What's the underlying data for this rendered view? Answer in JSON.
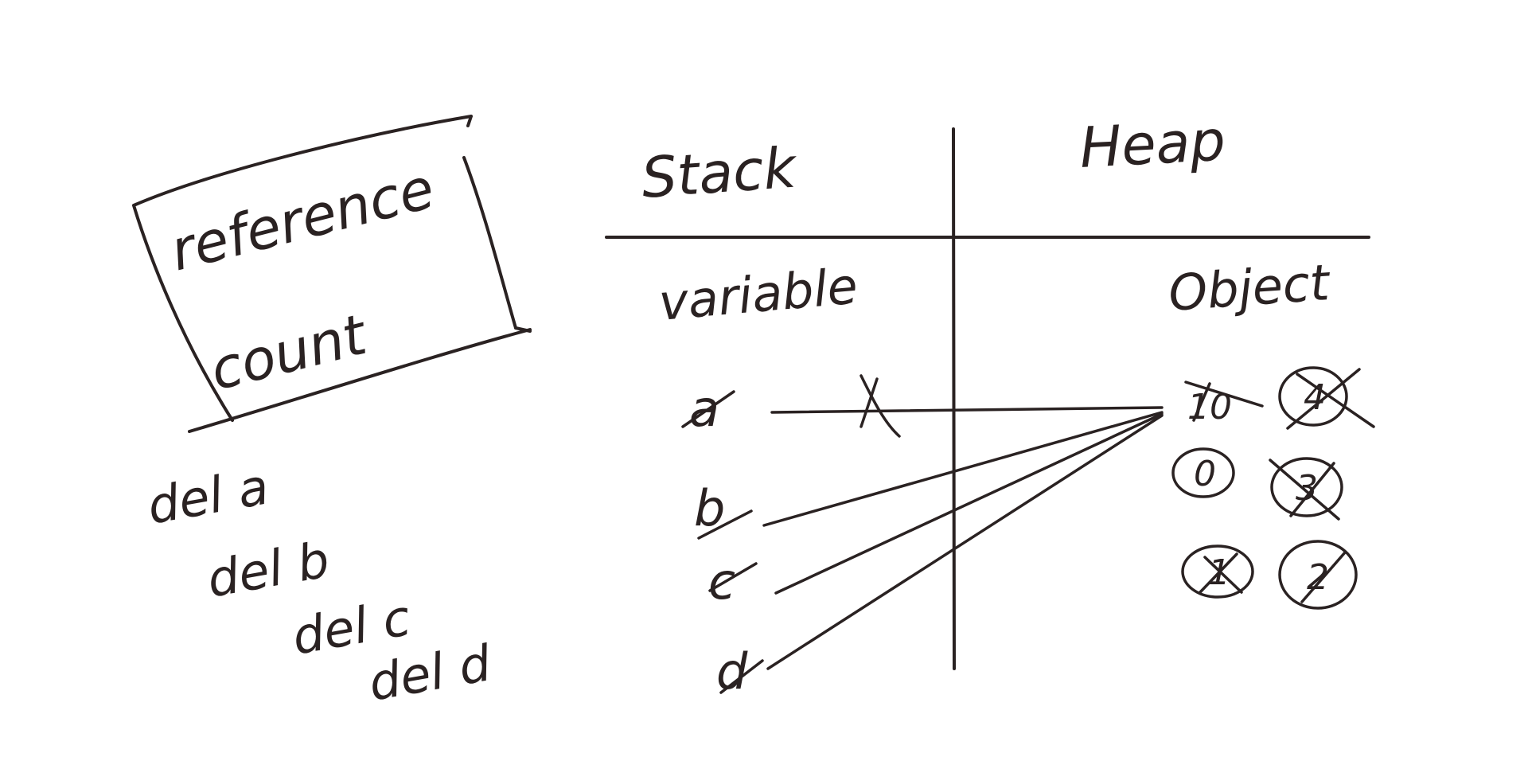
{
  "box": {
    "line1": "reference",
    "line2": "count"
  },
  "commands": [
    "del a",
    "del b",
    "del c",
    "del d"
  ],
  "headers": {
    "stack": "Stack",
    "heap": "Heap",
    "variable": "variable",
    "object": "Object"
  },
  "variables": [
    "a",
    "b",
    "c",
    "d"
  ],
  "objects": {
    "main": "10",
    "counts": [
      "4",
      "3",
      "2",
      "1",
      "0"
    ]
  },
  "colors": {
    "ink": "#2a2222",
    "background": "#ffffff"
  }
}
